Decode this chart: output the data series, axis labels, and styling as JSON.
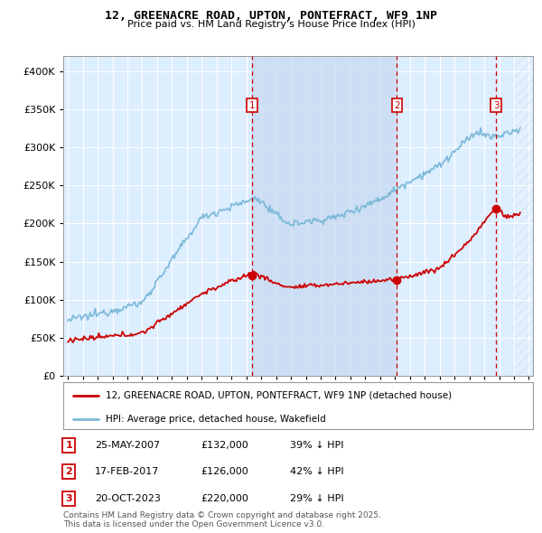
{
  "title": "12, GREENACRE ROAD, UPTON, PONTEFRACT, WF9 1NP",
  "subtitle": "Price paid vs. HM Land Registry's House Price Index (HPI)",
  "legend_line1": "12, GREENACRE ROAD, UPTON, PONTEFRACT, WF9 1NP (detached house)",
  "legend_line2": "HPI: Average price, detached house, Wakefield",
  "sale_prices": [
    132000,
    126000,
    220000
  ],
  "sale_labels": [
    "1",
    "2",
    "3"
  ],
  "table_rows": [
    [
      "1",
      "25-MAY-2007",
      "£132,000",
      "39% ↓ HPI"
    ],
    [
      "2",
      "17-FEB-2017",
      "£126,000",
      "42% ↓ HPI"
    ],
    [
      "3",
      "20-OCT-2023",
      "£220,000",
      "29% ↓ HPI"
    ]
  ],
  "footer": "Contains HM Land Registry data © Crown copyright and database right 2025.\nThis data is licensed under the Open Government Licence v3.0.",
  "hpi_color": "#7bb8d8",
  "price_color": "#cc0000",
  "sale_vline_color": "#cc0000",
  "plot_bg_color": "#ddeeff",
  "grid_color": "#ffffff",
  "shade_color": "#c5d8ee",
  "ylim": [
    0,
    420000
  ],
  "yticks": [
    0,
    50000,
    100000,
    150000,
    200000,
    250000,
    300000,
    350000,
    400000
  ],
  "xlim_start": 1994.7,
  "xlim_end": 2026.3
}
